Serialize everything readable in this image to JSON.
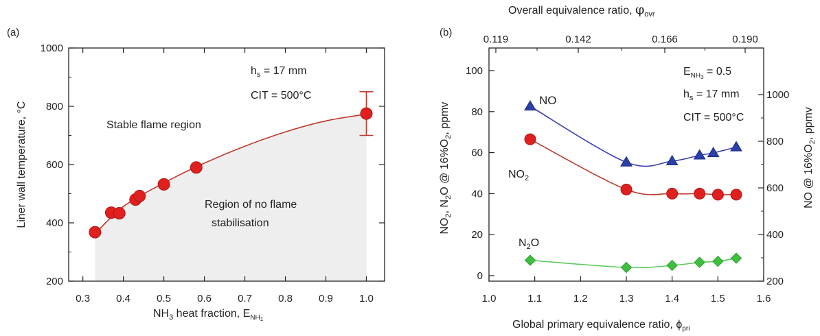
{
  "colors": {
    "red_fit": "#c0392b",
    "red_marker": "#e0201f",
    "blue_marker": "#2a3fa8",
    "blue_line": "#3a3fb0",
    "green_marker": "#3fbf3f",
    "green_line": "#5ec95e",
    "shade": "#eeeeee"
  },
  "chart_data": [
    {
      "panel_label": "(a)",
      "type": "scatter",
      "xlabel_main": "NH",
      "xlabel_sub1": "3",
      "xlabel_mid": " heat fraction, E",
      "xlabel_sub2": "NH",
      "xlabel_sub3": "1",
      "ylabel": "Liner wall temperature, °C",
      "xlim": [
        0.3,
        1.0
      ],
      "ylim": [
        200,
        1000
      ],
      "xticks": [
        "0.3",
        "0.4",
        "0.5",
        "0.6",
        "0.7",
        "0.8",
        "0.9",
        "1.0"
      ],
      "yticks": [
        "200",
        "400",
        "600",
        "800",
        "1000"
      ],
      "annotations": {
        "hs_pre": "h",
        "hs_sub": "s",
        "hs_post": " = 17 mm",
        "cit": "CIT = 500°C",
        "stable": "Stable flame region",
        "noflame_1": "Region of no flame",
        "noflame_2": "stabilisation"
      },
      "series": [
        {
          "x": [
            0.33,
            0.37,
            0.39,
            0.43,
            0.44,
            0.5,
            0.58,
            1.0
          ],
          "y": [
            368,
            435,
            433,
            480,
            492,
            532,
            590,
            775
          ]
        }
      ],
      "error_bar": {
        "x": 1.0,
        "low": 700,
        "high": 850
      },
      "fit": {
        "x": [
          0.33,
          0.4,
          0.5,
          0.6,
          0.7,
          0.8,
          0.9,
          1.0
        ],
        "y": [
          362,
          456,
          537,
          605,
          663,
          712,
          750,
          773
        ]
      }
    },
    {
      "panel_label": "(b)",
      "type": "line",
      "xlabel": "Global primary equivalence ratio, ϕ",
      "xlabel_sub": "pri",
      "ylabel_left_1": "NO",
      "ylabel_left_sub1": "2",
      "ylabel_left_2": ", N",
      "ylabel_left_sub2": "2",
      "ylabel_left_3": "O @ 16%O",
      "ylabel_left_sub3": "2",
      "ylabel_left_4": ", ppmv",
      "ylabel_right_1": "NO @ 16%O",
      "ylabel_right_sub": "2",
      "ylabel_right_2": ", ppmv",
      "top_axis_label": "Overall equivalence ratio, ",
      "top_axis_symbol": "φ",
      "top_axis_sub": "ovr",
      "xlim": [
        1.0,
        1.6
      ],
      "ylim_left": [
        0,
        100
      ],
      "ylim_right": [
        250,
        1050
      ],
      "xticks": [
        "1.0",
        "1.1",
        "1.2",
        "1.3",
        "1.4",
        "1.5",
        "1.6"
      ],
      "yticks_left": [
        "0",
        "20",
        "40",
        "60",
        "80",
        "100"
      ],
      "yticks_right": [
        "200",
        "400",
        "600",
        "800",
        "1000"
      ],
      "top_ticks": [
        "0.119",
        "0.142",
        "0.166",
        "0.190"
      ],
      "annotations": {
        "e_pre": "E",
        "e_sub": "NH",
        "e_sub2": "3",
        "e_post": " = 0.5",
        "hs_pre": "h",
        "hs_sub": "s",
        "hs_post": " = 17 mm",
        "cit": "CIT = 500°C"
      },
      "series": [
        {
          "name": "NO",
          "axis": "right",
          "marker": "triangle",
          "x": [
            1.09,
            1.3,
            1.4,
            1.46,
            1.49,
            1.54
          ],
          "y": [
            950,
            710,
            715,
            740,
            750,
            775
          ]
        },
        {
          "name": "NO",
          "sub": "2",
          "axis": "left",
          "marker": "circle",
          "x": [
            1.09,
            1.3,
            1.4,
            1.46,
            1.5,
            1.54
          ],
          "y": [
            66.5,
            42,
            40,
            40,
            39.5,
            39.5
          ]
        },
        {
          "name": "N",
          "sub": "2",
          "suffix": "O",
          "axis": "left",
          "marker": "diamond",
          "x": [
            1.09,
            1.3,
            1.4,
            1.46,
            1.5,
            1.54
          ],
          "y": [
            7.5,
            4,
            5,
            6.5,
            7,
            8.5
          ]
        }
      ]
    }
  ]
}
